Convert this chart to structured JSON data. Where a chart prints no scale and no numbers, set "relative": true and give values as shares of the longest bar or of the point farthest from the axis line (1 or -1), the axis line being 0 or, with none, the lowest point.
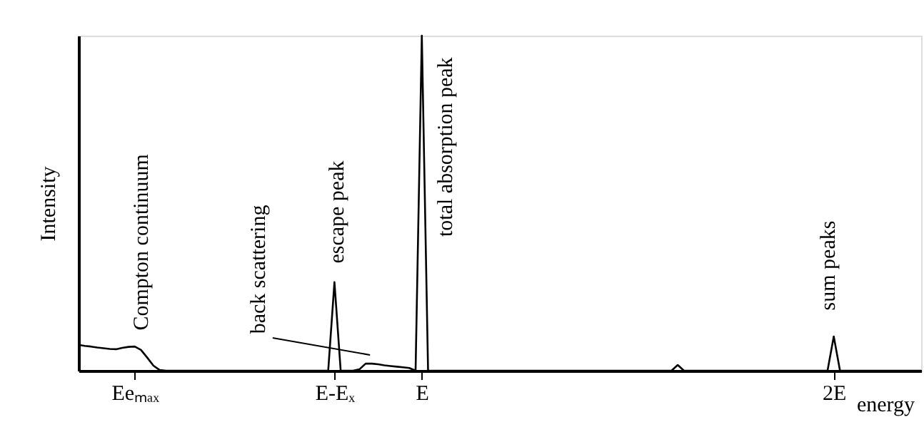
{
  "chart_data": {
    "type": "line",
    "relative": true,
    "color": "#000000",
    "xlabel": "energy",
    "ylabel": "Intensity",
    "categories": [
      null,
      null,
      null,
      null,
      null,
      null,
      null,
      null,
      null,
      "Eeₘₐₓ",
      null,
      null,
      null,
      null,
      null,
      null,
      null,
      null,
      null,
      null,
      null,
      null,
      null,
      null,
      null,
      null,
      null,
      null,
      null,
      null,
      null,
      null,
      null,
      null,
      null,
      null,
      null,
      null,
      null,
      null,
      null,
      "E-Eₓ",
      null,
      null,
      null,
      null,
      null,
      null,
      null,
      null,
      null,
      null,
      null,
      null,
      null,
      "E",
      null,
      null,
      null,
      null,
      null,
      null,
      null,
      null,
      null,
      null,
      null,
      null,
      null,
      null,
      null,
      null,
      null,
      null,
      null,
      null,
      null,
      null,
      null,
      null,
      null,
      null,
      null,
      null,
      null,
      null,
      null,
      null,
      null,
      null,
      null,
      null,
      null,
      null,
      null,
      null,
      null,
      null,
      null,
      null,
      null,
      null,
      null,
      null,
      null,
      null,
      null,
      null,
      null,
      null,
      null,
      null,
      null,
      null,
      null,
      null,
      null,
      null,
      null,
      null,
      null,
      "2E",
      null,
      null,
      null,
      null,
      null,
      null,
      null,
      null,
      null,
      null,
      null,
      null,
      null,
      null
    ],
    "values": [
      0.077,
      0.074,
      0.072,
      0.069,
      0.067,
      0.065,
      0.064,
      0.068,
      0.071,
      0.072,
      0.062,
      0.039,
      0.015,
      0.002,
      0,
      0,
      0,
      0,
      0,
      0,
      0,
      0,
      0,
      0,
      0,
      0,
      0,
      0,
      0,
      0,
      0,
      0,
      0,
      0,
      0,
      0,
      0,
      0,
      0,
      0,
      0,
      0.264,
      0,
      0,
      0,
      0.004,
      0.021,
      0.021,
      0.019,
      0.016,
      0.014,
      0.012,
      0.01,
      0.008,
      0,
      1,
      0,
      0,
      0,
      0,
      0,
      0,
      0,
      0,
      0,
      0,
      0,
      0,
      0,
      0,
      0,
      0,
      0,
      0,
      0,
      0,
      0,
      0,
      0,
      0,
      0,
      0,
      0,
      0,
      0,
      0,
      0,
      0,
      0,
      0,
      0,
      0,
      0,
      0,
      0,
      0,
      0.017,
      0,
      0,
      0,
      0,
      0,
      0,
      0,
      0,
      0,
      0,
      0,
      0,
      0,
      0,
      0,
      0,
      0,
      0,
      0,
      0,
      0,
      0,
      0,
      0,
      0.102,
      0,
      0,
      0,
      0,
      0,
      0,
      0,
      0,
      0,
      0,
      0,
      0,
      0,
      0
    ],
    "annotations": [
      "Compton continuum",
      "back scattering",
      "escape peak",
      "total absorption peak",
      "sum peaks"
    ]
  }
}
